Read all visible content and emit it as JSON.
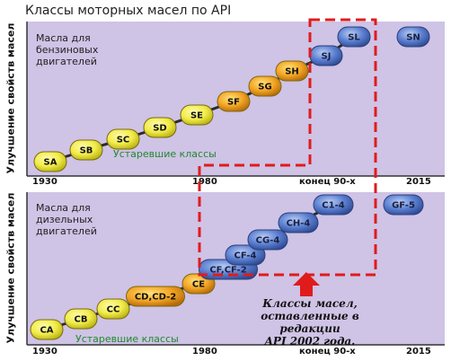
{
  "title": "Классы моторных масел по API",
  "top_panel": {
    "heading_line1": "Масла для",
    "heading_line2": "бензиновых",
    "heading_line3": "двигателей",
    "y_axis_label": "Улучшение свойств масел",
    "obsolete_label": "Устаревшие классы",
    "x_ticks": [
      "1930",
      "1980",
      "конец 90-х",
      "2015"
    ],
    "classes": [
      "SA",
      "SB",
      "SC",
      "SD",
      "SE",
      "SF",
      "SG",
      "SH",
      "SJ",
      "SL",
      "SN"
    ]
  },
  "bottom_panel": {
    "heading_line1": "Масла для",
    "heading_line2": "дизельных",
    "heading_line3": "двигателей",
    "y_axis_label": "Улучшение свойств масел",
    "obsolete_label": "Устаревшие классы",
    "x_ticks": [
      "1930",
      "1980",
      "конец 90-х",
      "2015"
    ],
    "classes": [
      "CA",
      "CB",
      "CC",
      "CD,CD-2",
      "CE",
      "CF,CF-2",
      "CF-4",
      "CG-4",
      "CH-4",
      "C1-4",
      "GF-5"
    ]
  },
  "callout": {
    "line1": "Классы масел,",
    "line2": "оставленные в редакции",
    "line3": "API 2002 года."
  },
  "colors": {
    "panel_bg": "#cfc3e6",
    "pill_yellow": "#f2ec4a",
    "pill_orange": "#f3a524",
    "pill_blue": "#5b7fd0",
    "highlight_red": "#e01b1b",
    "obsolete_text": "#1f8a2b"
  }
}
